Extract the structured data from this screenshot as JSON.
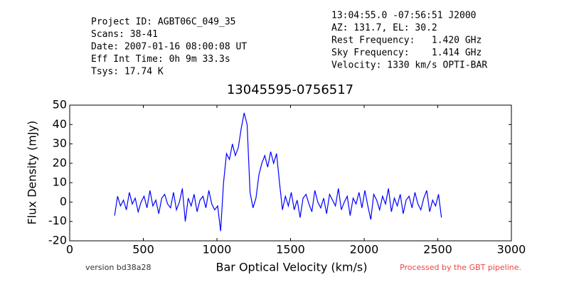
{
  "chart_data": {
    "type": "line",
    "title": "13045595-0756517",
    "header_left": [
      "Project ID: AGBT06C_049_35",
      "Scans: 38-41",
      "Date: 2007-01-16 08:00:08 UT",
      "Eff Int Time: 0h 9m 33.3s",
      "Tsys: 17.74 K"
    ],
    "header_right": [
      "13:04:55.0 -07:56:51 J2000",
      "AZ: 131.7, EL: 30.2",
      "Rest Frequency:   1.420 GHz",
      "Sky Frequency:    1.414 GHz",
      "Velocity: 1330 km/s OPTI-BAR"
    ],
    "footer_left": "version bd38a28",
    "footer_right": "Processed by the GBT pipeline.",
    "xlabel": "Bar Optical Velocity (km/s)",
    "ylabel": "Flux Density (mJy)",
    "color": "#0000ff",
    "x": [
      305,
      325,
      345,
      365,
      385,
      405,
      425,
      445,
      465,
      485,
      505,
      525,
      545,
      565,
      585,
      605,
      625,
      645,
      665,
      685,
      705,
      725,
      745,
      765,
      785,
      805,
      825,
      845,
      865,
      885,
      905,
      925,
      945,
      965,
      985,
      1005,
      1025,
      1045,
      1065,
      1085,
      1105,
      1125,
      1145,
      1165,
      1185,
      1205,
      1225,
      1245,
      1265,
      1285,
      1305,
      1325,
      1345,
      1365,
      1385,
      1405,
      1425,
      1445,
      1465,
      1485,
      1505,
      1525,
      1545,
      1565,
      1585,
      1605,
      1625,
      1645,
      1665,
      1685,
      1705,
      1725,
      1745,
      1765,
      1785,
      1805,
      1825,
      1845,
      1865,
      1885,
      1905,
      1925,
      1945,
      1965,
      1985,
      2005,
      2025,
      2045,
      2065,
      2085,
      2105,
      2125,
      2145,
      2165,
      2185,
      2205,
      2225,
      2245,
      2265,
      2285,
      2305,
      2325,
      2345,
      2365,
      2385,
      2405,
      2425,
      2445,
      2465,
      2485,
      2505,
      2525
    ],
    "values": [
      -7,
      3,
      -2,
      1,
      -4,
      5,
      -1,
      2,
      -5,
      0,
      3,
      -3,
      6,
      -2,
      1,
      -6,
      2,
      4,
      -1,
      -3,
      5,
      -4,
      0,
      7,
      -10,
      2,
      -2,
      4,
      -5,
      1,
      3,
      -3,
      6,
      -1,
      -4,
      -2,
      -15,
      10,
      25,
      22,
      30,
      24,
      28,
      38,
      46,
      40,
      5,
      -3,
      2,
      14,
      20,
      24,
      18,
      26,
      20,
      25,
      10,
      -4,
      3,
      -2,
      5,
      -4,
      1,
      -8,
      2,
      4,
      -1,
      -5,
      6,
      0,
      -3,
      2,
      -6,
      4,
      1,
      -2,
      7,
      -4,
      0,
      3,
      -7,
      2,
      -1,
      5,
      -3,
      6,
      -2,
      -9,
      4,
      1,
      -4,
      3,
      -1,
      7,
      -5,
      2,
      -2,
      4,
      -6,
      1,
      3,
      -3,
      5,
      -1,
      -4,
      2,
      6,
      -5,
      1,
      -2,
      4,
      -8
    ],
    "xlim": [
      0,
      3000
    ],
    "xticks": [
      0,
      500,
      1000,
      1500,
      2000,
      2500,
      3000
    ],
    "ylim": [
      -20,
      50
    ],
    "yticks": [
      -20,
      -10,
      0,
      10,
      20,
      30,
      40,
      50
    ]
  }
}
